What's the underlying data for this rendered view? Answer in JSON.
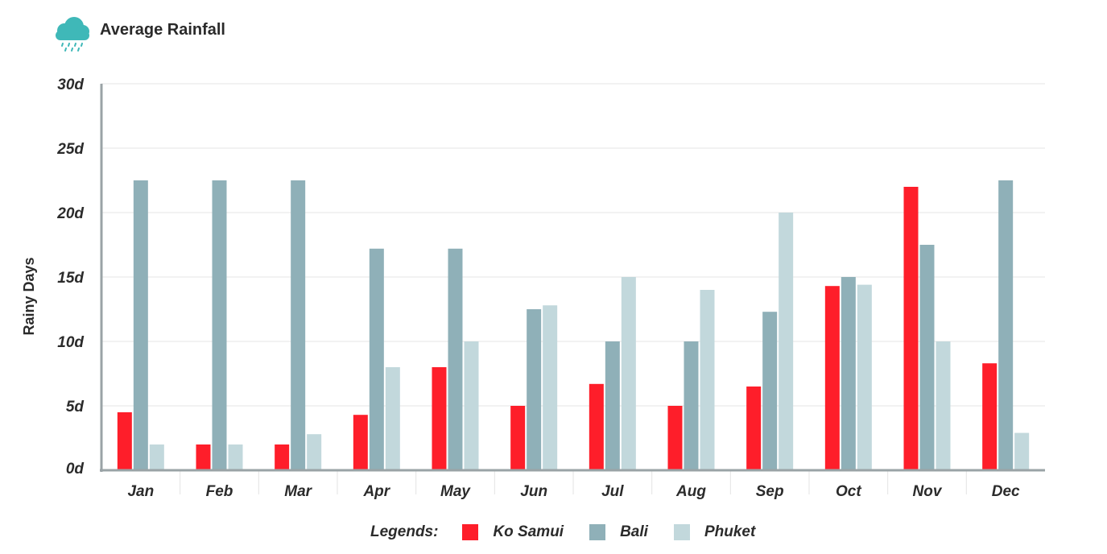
{
  "header": {
    "title": "Average Rainfall",
    "icon": "rain-cloud-icon"
  },
  "legend": {
    "title": "Legends:"
  },
  "colors": {
    "ko_samui": "#fe1e2a",
    "bali": "#8fb0b8",
    "phuket": "#c2d8dc",
    "axis": "#9aa3a6",
    "grid": "#e6e6e6",
    "cloud": "#3fb8b8"
  },
  "chart_data": {
    "type": "bar",
    "title": "Average Rainfall",
    "xlabel": "",
    "ylabel": "Rainy Days",
    "ylim": [
      0,
      30
    ],
    "yticks": [
      "0d",
      "5d",
      "10d",
      "15d",
      "20d",
      "25d",
      "30d"
    ],
    "categories": [
      "Jan",
      "Feb",
      "Mar",
      "Apr",
      "May",
      "Jun",
      "Jul",
      "Aug",
      "Sep",
      "Oct",
      "Nov",
      "Dec"
    ],
    "series": [
      {
        "name": "Ko Samui",
        "color": "#fe1e2a",
        "values": [
          4.5,
          2,
          2,
          4.3,
          8,
          5,
          6.7,
          5,
          6.5,
          14.3,
          22,
          8.3
        ]
      },
      {
        "name": "Bali",
        "color": "#8fb0b8",
        "values": [
          22.5,
          22.5,
          22.5,
          17.2,
          17.2,
          12.5,
          10,
          10,
          12.3,
          15,
          17.5,
          22.5
        ]
      },
      {
        "name": "Phuket",
        "color": "#c2d8dc",
        "values": [
          2,
          2,
          2.8,
          8,
          10,
          12.8,
          15,
          14,
          20,
          14.4,
          10,
          2.9
        ]
      }
    ],
    "grid": true,
    "legend_position": "bottom"
  }
}
